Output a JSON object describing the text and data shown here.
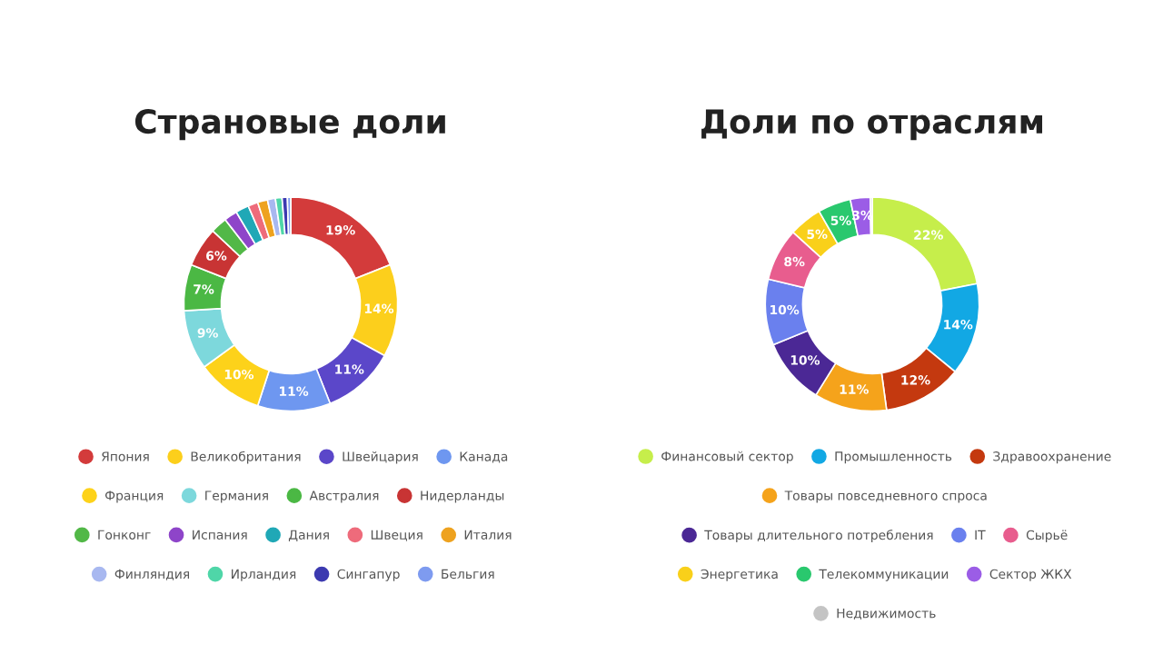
{
  "chart_data": [
    {
      "type": "donut",
      "title": "Страновые доли",
      "legend": "bottom",
      "categories": [
        "Япония",
        "Великобритания",
        "Швейцария",
        "Канада",
        "Франция",
        "Германия",
        "Австралия",
        "Нидерланды",
        "Гонконг",
        "Испания",
        "Дания",
        "Швеция",
        "Италия",
        "Финляндия",
        "Ирландия",
        "Сингапур",
        "Бельгия"
      ],
      "values": [
        19,
        14,
        11,
        11,
        10,
        9,
        7,
        6,
        2.5,
        2,
        2,
        1.5,
        1.5,
        1.2,
        1,
        0.8,
        0.5
      ],
      "value_labels": [
        "19%",
        "14%",
        "11%",
        "11%",
        "10%",
        "9%",
        "7%",
        "6%",
        null,
        null,
        null,
        null,
        null,
        null,
        null,
        null,
        null
      ],
      "colors": [
        "#d33b3b",
        "#fccf1c",
        "#5b47c9",
        "#6e97f0",
        "#fdd21a",
        "#7dd8dc",
        "#4bb844",
        "#c83434",
        "#52b847",
        "#8e45c9",
        "#20a8b6",
        "#ee6b7b",
        "#eea21f",
        "#a8b8f0",
        "#4fd6a8",
        "#3c3ab0",
        "#7e9bf0"
      ]
    },
    {
      "type": "donut",
      "title": "Доли по отраслям",
      "legend": "bottom",
      "categories": [
        "Финансовый сектор",
        "Промышленность",
        "Здравоохранение",
        "Товары повседневного спроса",
        "Товары длительного потребления",
        "IT",
        "Сырьё",
        "Энергетика",
        "Телекоммуникации",
        "Сектор ЖКХ",
        "Недвижимость"
      ],
      "values": [
        22,
        14,
        12,
        11,
        10,
        10,
        8,
        5,
        5,
        3,
        0.3
      ],
      "value_labels": [
        "22%",
        "14%",
        "12%",
        "11%",
        "10%",
        "10%",
        "8%",
        "5%",
        "5%",
        "3%",
        null
      ],
      "colors": [
        "#c6ee4b",
        "#12a8e4",
        "#c4390f",
        "#f5a31b",
        "#4b2895",
        "#6a80ee",
        "#e85d8e",
        "#f9d01a",
        "#2ac86e",
        "#9b5de6",
        "#c4c4c4"
      ]
    }
  ]
}
